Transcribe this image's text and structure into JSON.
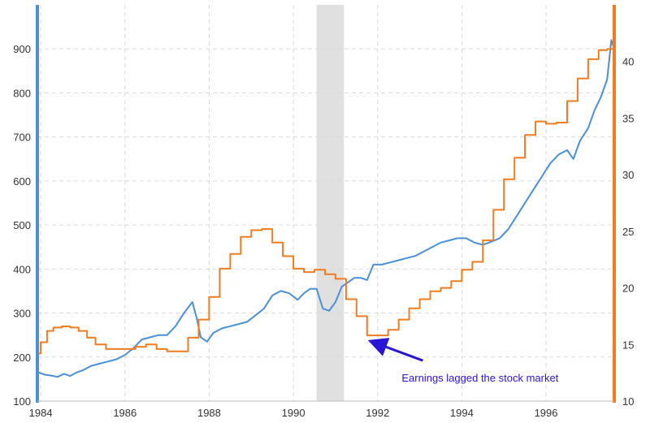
{
  "colors": {
    "left_axis": "#4a90d9",
    "right_axis": "#f07c22",
    "index_line": "#4a90d9",
    "earnings_line": "#f07c22",
    "recession_band": "#e0e0e0",
    "grid": "#d9d9d9",
    "annotation": "#2a14d6"
  },
  "chart_data": {
    "type": "line",
    "title": "",
    "xlabel": "",
    "ylabel": "",
    "grid": true,
    "xlim": [
      1983.92,
      1997.62
    ],
    "ylim_left": [
      100,
      1000
    ],
    "ylim_right": [
      10,
      45
    ],
    "x_ticks": [
      1984,
      1986,
      1988,
      1990,
      1992,
      1994,
      1996
    ],
    "x_tick_labels": [
      "1984",
      "1986",
      "1988",
      "1990",
      "1992",
      "1994",
      "1996"
    ],
    "y_left_ticks": [
      100,
      200,
      300,
      400,
      500,
      600,
      700,
      800,
      900
    ],
    "y_left_tick_labels": [
      "100",
      "200",
      "300",
      "400",
      "500",
      "600",
      "700",
      "800",
      "900"
    ],
    "y_right_ticks": [
      10,
      15,
      20,
      25,
      30,
      35,
      40
    ],
    "y_right_tick_labels": [
      "10",
      "15",
      "20",
      "25",
      "30",
      "35",
      "40"
    ],
    "shaded_regions": [
      {
        "x_start": 1990.55,
        "x_end": 1991.2
      }
    ],
    "series": [
      {
        "axis": "left",
        "x": [
          1983.95,
          1984.1,
          1984.25,
          1984.4,
          1984.55,
          1984.7,
          1984.85,
          1985.0,
          1985.2,
          1985.4,
          1985.6,
          1985.8,
          1986.0,
          1986.2,
          1986.4,
          1986.6,
          1986.8,
          1987.0,
          1987.2,
          1987.4,
          1987.6,
          1987.7,
          1987.8,
          1987.95,
          1988.1,
          1988.3,
          1988.5,
          1988.7,
          1988.9,
          1989.1,
          1989.3,
          1989.5,
          1989.7,
          1989.9,
          1990.1,
          1990.25,
          1990.4,
          1990.55,
          1990.7,
          1990.85,
          1991.0,
          1991.15,
          1991.3,
          1991.45,
          1991.6,
          1991.75,
          1991.9,
          1992.1,
          1992.3,
          1992.5,
          1992.7,
          1992.9,
          1993.1,
          1993.3,
          1993.5,
          1993.7,
          1993.9,
          1994.1,
          1994.3,
          1994.5,
          1994.7,
          1994.9,
          1995.1,
          1995.3,
          1995.5,
          1995.7,
          1995.9,
          1996.1,
          1996.3,
          1996.5,
          1996.65,
          1996.8,
          1997.0,
          1997.15,
          1997.3,
          1997.45,
          1997.55,
          1997.62
        ],
        "y": [
          165,
          160,
          158,
          155,
          162,
          157,
          165,
          170,
          180,
          185,
          190,
          195,
          205,
          220,
          240,
          245,
          250,
          250,
          270,
          300,
          325,
          290,
          245,
          235,
          255,
          265,
          270,
          275,
          280,
          295,
          310,
          340,
          350,
          345,
          330,
          345,
          355,
          355,
          310,
          305,
          325,
          360,
          370,
          380,
          380,
          375,
          410,
          410,
          415,
          420,
          425,
          430,
          440,
          450,
          460,
          465,
          470,
          470,
          460,
          455,
          462,
          470,
          490,
          520,
          550,
          580,
          610,
          640,
          660,
          670,
          650,
          690,
          720,
          760,
          790,
          830,
          920,
          900
        ]
      },
      {
        "axis": "right",
        "x": [
          1983.95,
          1984.0,
          1984.15,
          1984.3,
          1984.5,
          1984.7,
          1984.9,
          1985.1,
          1985.3,
          1985.55,
          1985.75,
          1986.0,
          1986.25,
          1986.5,
          1986.75,
          1987.0,
          1987.25,
          1987.5,
          1987.75,
          1988.0,
          1988.25,
          1988.5,
          1988.75,
          1989.0,
          1989.25,
          1989.5,
          1989.75,
          1990.0,
          1990.25,
          1990.5,
          1990.75,
          1991.0,
          1991.25,
          1991.5,
          1991.75,
          1992.0,
          1992.25,
          1992.5,
          1992.75,
          1993.0,
          1993.25,
          1993.5,
          1993.75,
          1994.0,
          1994.25,
          1994.5,
          1994.75,
          1995.0,
          1995.25,
          1995.5,
          1995.75,
          1996.0,
          1996.25,
          1996.5,
          1996.75,
          1997.0,
          1997.25,
          1997.45,
          1997.62
        ],
        "y": [
          14.2,
          15.2,
          16.2,
          16.5,
          16.6,
          16.5,
          16.2,
          15.6,
          15.0,
          14.6,
          14.6,
          14.6,
          14.8,
          15.0,
          14.6,
          14.4,
          14.4,
          15.6,
          17.2,
          19.2,
          21.7,
          23.0,
          24.5,
          25.1,
          25.2,
          24.0,
          22.8,
          21.7,
          21.4,
          21.6,
          21.2,
          20.8,
          19.0,
          17.5,
          15.8,
          15.8,
          16.3,
          17.2,
          18.2,
          19.0,
          19.7,
          20.0,
          20.6,
          21.6,
          22.3,
          24.2,
          26.9,
          29.6,
          31.5,
          33.5,
          34.7,
          34.5,
          34.6,
          36.5,
          38.5,
          40.2,
          41.0,
          41.1,
          41.1
        ]
      }
    ],
    "annotations": [
      {
        "text": "Earnings lagged the stock market",
        "x": 1991.8,
        "y_right": 15.3
      }
    ]
  }
}
